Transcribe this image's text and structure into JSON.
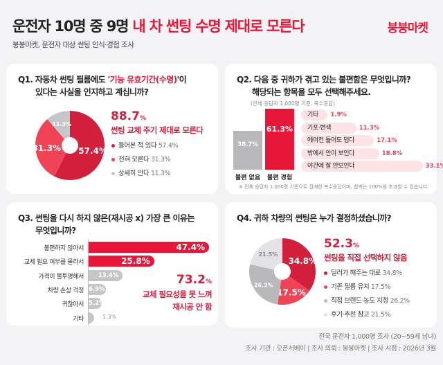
{
  "header": {
    "title_black": "운전자 10명 중 9명",
    "title_red": "내 차 썬팅 수명 제대로 모른다",
    "subtitle": "붕붕마켓, 운전자 대상 썬팅 인식·경험 조사",
    "logo": "붕붕마켓"
  },
  "q1": {
    "question_a": "Q1. 자동차 썬팅 필름에도 '",
    "question_red": "기능 유효기간(수명)",
    "question_b": "'이",
    "question_line2": "있다는 사실을 인지하고 계십니까?",
    "big": "88.7",
    "unit": "%",
    "headline": "썬팅 교체 주기 제대로 모른다",
    "slices": [
      {
        "label": "들어본 적 있다",
        "value": 57.4,
        "color": "#d21f3c"
      },
      {
        "label": "전혀 모른다",
        "value": 31.3,
        "color": "#ee4456"
      },
      {
        "label": "상세히 안다",
        "value": 11.3,
        "color": "#c6c6c8"
      }
    ]
  },
  "q2": {
    "question_line1": "Q2. 다음 중 귀하가 겪고 있는 불편함은 무엇입니까?",
    "question_line2": "해당되는 항목을 모두 선택해주세요.",
    "basis": "(전체 응답자 1,000명 기준, 복수응답)",
    "main": [
      {
        "label": "불편 없음",
        "value": 38.7,
        "color": "#b9b9bb"
      },
      {
        "label": "불편 경험",
        "value": 61.3,
        "color": "#e8173a"
      }
    ],
    "items": [
      {
        "label": "기타",
        "value": 1.9
      },
      {
        "label": "기포·변색",
        "value": 11.3
      },
      {
        "label": "에어컨 틀어도 덥다",
        "value": 17.1
      },
      {
        "label": "밖에서 안이 보인다",
        "value": 18.8
      },
      {
        "label": "야간에 잘 안보인다",
        "value": 33.1
      }
    ],
    "note": "※ 전체 응답자 1,000명 기준으로 집계한 복수응답이며, 합계는 100%를 초과할 수 있습니다."
  },
  "q3": {
    "question_line1": "Q3. 썬팅을 다시 하지 않은(재시공 x) 가장 큰 이유는",
    "question_line2": "무엇입니까?",
    "big": "73.2",
    "unit": "%",
    "headline_line1": "교체 필요성을 못 느껴",
    "headline_line2": "재시공 안 함",
    "rows": [
      {
        "label": "불편하지 않아서",
        "value": 47.4,
        "hl": true
      },
      {
        "label": "교체 필요 여부를 몰라서",
        "value": 25.8,
        "hl": true
      },
      {
        "label": "가격이 불투명해서",
        "value": 13.4
      },
      {
        "label": "차량 손상 걱정",
        "value": 6.9
      },
      {
        "label": "귀찮아서",
        "value": 5.2
      },
      {
        "label": "기타",
        "value": 1.3
      }
    ]
  },
  "q4": {
    "question": "Q4. 귀하 차량의 썬팅은 누가 결정하셨습니까?",
    "big": "52.3",
    "unit": "%",
    "headline": "썬팅을 직접 선택하지 않음",
    "slices": [
      {
        "label": "딜러가 해주는 대로",
        "value": 34.8,
        "color": "#d21f3c"
      },
      {
        "label": "기존 필름 유지",
        "value": 17.5,
        "color": "#ee4456"
      },
      {
        "label": "직접 브랜드·농도 지정",
        "value": 26.2,
        "color": "#b9b9bb"
      },
      {
        "label": "후기·추천 참고",
        "value": 21.5,
        "color": "#e3e3e7"
      }
    ]
  },
  "footer": {
    "line1": "전국 운전자 1,000명 조사 (20~59세 남녀)",
    "line2": "조사 기관 : 오픈서베이  |  조사 의뢰 : 붕붕마켓  |  조사 시점 : 2026년 3월"
  }
}
